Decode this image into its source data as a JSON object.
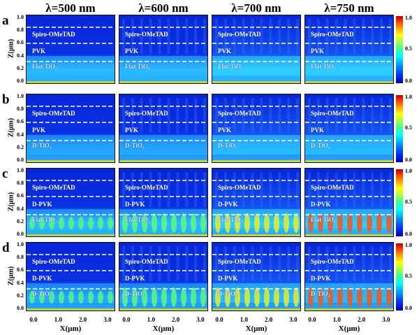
{
  "columns": [
    "λ=500 nm",
    "λ=600 nm",
    "λ=700 nm",
    "λ=750 nm"
  ],
  "rows": [
    {
      "letter": "a",
      "labels": [
        "Spiro-OMeTAD",
        "PVK",
        "Flat TiO₂"
      ]
    },
    {
      "letter": "b",
      "labels": [
        "Spiro-OMeTAD",
        "PVK",
        "D-TiO₂"
      ]
    },
    {
      "letter": "c",
      "labels": [
        "Spiro-OMeTAD",
        "D-PVK",
        "Flat TiO₂"
      ]
    },
    {
      "letter": "d",
      "labels": [
        "Spiro-OMeTAD",
        "D-PVK",
        "D-TiO₂"
      ]
    }
  ],
  "y_axis": {
    "label": "Z(μm)",
    "ticks": [
      "1.0",
      "0.8",
      "0.6",
      "0.4",
      "0.2",
      "0.0"
    ]
  },
  "x_axis": {
    "label": "X(μm)",
    "ticks": [
      "0.0",
      "1.0",
      "2.0",
      "3.0"
    ]
  },
  "colorbar": {
    "ticks": [
      "1.0",
      "0.5",
      "0.0"
    ]
  },
  "colors": {
    "background_field": "#0a28e0",
    "dashed_lines": "#ffffff"
  }
}
